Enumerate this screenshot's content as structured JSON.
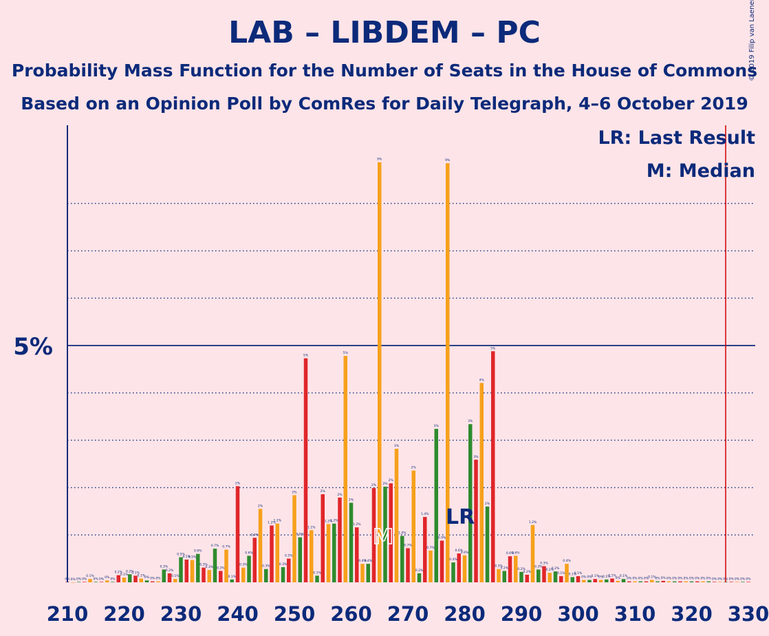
{
  "title": "LAB – LIBDEM – PC",
  "subtitle1": "Probability Mass Function for the Number of Seats in the House of Commons",
  "subtitle2": "Based on an Opinion Poll by ComRes for Daily Telegraph, 4–6 October 2019",
  "copyright": "© 2019 Filip van Laenen",
  "legend": {
    "lr": "LR: Last Result",
    "m": "M: Median"
  },
  "markers": {
    "lr_text": "LR",
    "m_text": "M",
    "last_result": 278,
    "median": 266
  },
  "colors": {
    "background": "#fde4e8",
    "text": "#0c2a7a",
    "red": "#e0262a",
    "orange": "#f6a11c",
    "green": "#2e8b2e",
    "last_result_line": "#cc0000"
  },
  "chart_data": {
    "type": "bar",
    "xlabel": "",
    "ylabel": "",
    "xlim": [
      210,
      330
    ],
    "ylim": [
      0,
      9
    ],
    "x_ticks": [
      210,
      220,
      230,
      240,
      250,
      260,
      270,
      280,
      290,
      300,
      310,
      320,
      330
    ],
    "y_ticks": [
      {
        "value": 5,
        "label": "5%"
      }
    ],
    "grid_dotted": [
      1,
      2,
      3,
      4,
      6,
      7,
      8
    ],
    "color_cycle": [
      "red",
      "orange",
      "green"
    ],
    "cycle_start": 210,
    "vertical_line_at": 326,
    "x": [
      210,
      211,
      212,
      213,
      214,
      215,
      216,
      217,
      218,
      219,
      220,
      221,
      222,
      223,
      224,
      225,
      226,
      227,
      228,
      229,
      230,
      231,
      232,
      233,
      234,
      235,
      236,
      237,
      238,
      239,
      240,
      241,
      242,
      243,
      244,
      245,
      246,
      247,
      248,
      249,
      250,
      251,
      252,
      253,
      254,
      255,
      256,
      257,
      258,
      259,
      260,
      261,
      262,
      263,
      264,
      265,
      266,
      267,
      268,
      269,
      270,
      271,
      272,
      273,
      274,
      275,
      276,
      277,
      278,
      279,
      280,
      281,
      282,
      283,
      284,
      285,
      286,
      287,
      288,
      289,
      290,
      291,
      292,
      293,
      294,
      295,
      296,
      297,
      298,
      299,
      300,
      301,
      302,
      303,
      304,
      305,
      306,
      307,
      308,
      309,
      310,
      311,
      312,
      313,
      314,
      315,
      316,
      317,
      318,
      319,
      320,
      321,
      322,
      323,
      324,
      325,
      326,
      327,
      328,
      329,
      330
    ],
    "values": [
      0.01,
      0,
      0.01,
      0.01,
      0.07,
      0.01,
      0.01,
      0.04,
      0.01,
      0.15,
      0.1,
      0.17,
      0.14,
      0.08,
      0.04,
      0.02,
      0.02,
      0.27,
      0.19,
      0.07,
      0.53,
      0.48,
      0.47,
      0.6,
      0.31,
      0.26,
      0.71,
      0.24,
      0.69,
      0.06,
      2.03,
      0.31,
      0.56,
      0.94,
      1.55,
      0.28,
      1.2,
      1.24,
      0.32,
      0.5,
      1.84,
      0.95,
      4.73,
      1.1,
      0.14,
      1.86,
      1.23,
      1.24,
      1.79,
      4.78,
      1.68,
      1.16,
      0.39,
      0.39,
      1.99,
      8.87,
      2.02,
      2.09,
      2.82,
      0.98,
      0.72,
      2.36,
      0.19,
      1.38,
      0.67,
      3.24,
      0.88,
      8.85,
      0.42,
      0.61,
      0.57,
      3.34,
      2.59,
      4.21,
      1.6,
      4.88,
      0.28,
      0.24,
      0.55,
      0.56,
      0.22,
      0.16,
      1.21,
      0.27,
      0.34,
      0.2,
      0.23,
      0.13,
      0.39,
      0.11,
      0.13,
      0.05,
      0.05,
      0.07,
      0.05,
      0.06,
      0.08,
      0.03,
      0.07,
      0.02,
      0.02,
      0.02,
      0.02,
      0.05,
      0.02,
      0.03,
      0.02,
      0.02,
      0.02,
      0.02,
      0.02,
      0.02,
      0.02,
      0.02,
      0.01,
      0.01,
      0.01,
      0.01,
      0.01,
      0.01,
      0.01
    ],
    "value_labels": [
      "0%",
      "0%",
      "0%",
      "0%",
      "0.1%",
      "0%",
      "0%",
      "0%",
      "0%",
      "0.2%",
      "0.1%",
      "0.2%",
      "0.1%",
      "0.1%",
      "0%",
      "0%",
      "0%",
      "0.3%",
      "0.2%",
      "0.1%",
      "0.5%",
      "0.5%",
      "0.5%",
      "0.6%",
      "0.3%",
      "0.3%",
      "0.7%",
      "0.2%",
      "0.7%",
      "0.1%",
      "2%",
      "0.3%",
      "0.6%",
      "0.9%",
      "2%",
      "0.3%",
      "1.2%",
      "1.2%",
      "0.3%",
      "0.5%",
      "2%",
      "0.9%",
      "5%",
      "1.1%",
      "0.1%",
      "2%",
      "1.2%",
      "1.2%",
      "2%",
      "5%",
      "2%",
      "1.2%",
      "0.4%",
      "0.4%",
      "2%",
      "9%",
      "2%",
      "2%",
      "3%",
      "1.0%",
      "0.7%",
      "2%",
      "0.2%",
      "1.4%",
      "0.7%",
      "3%",
      "0.9%",
      "9%",
      "0.4%",
      "0.6%",
      "0.6%",
      "3%",
      "3%",
      "4%",
      "2%",
      "5%",
      "0.3%",
      "0.2%",
      "0.6%",
      "0.6%",
      "0.2%",
      "0.2%",
      "1.2%",
      "0.3%",
      "0.3%",
      "0.2%",
      "0.2%",
      "0.1%",
      "0.4%",
      "0.1%",
      "0.1%",
      "0%",
      "0%",
      "0.1%",
      "0%",
      "0.1%",
      "0.1%",
      "0%",
      "0.1%",
      "0%",
      "0%",
      "0%",
      "0%",
      "0.1%",
      "0%",
      "0%",
      "0%",
      "0%",
      "0%",
      "0%",
      "0%",
      "0%",
      "0%",
      "0%",
      "0%",
      "0%",
      "0%",
      "0%",
      "0%",
      "0%",
      "0%"
    ]
  }
}
